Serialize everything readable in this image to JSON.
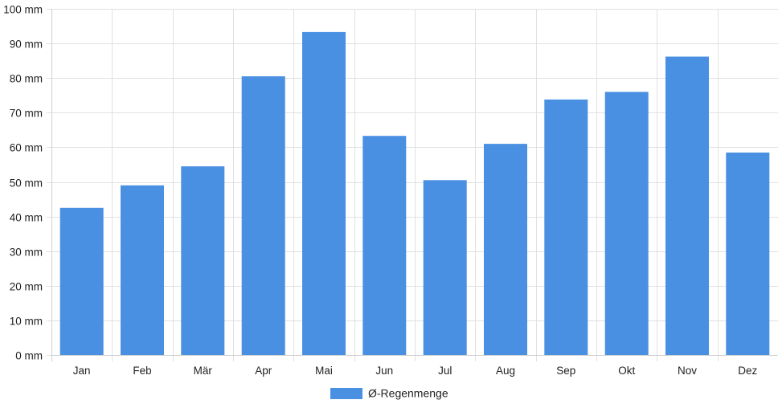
{
  "chart_data": {
    "type": "bar",
    "categories": [
      "Jan",
      "Feb",
      "Mär",
      "Apr",
      "Mai",
      "Jun",
      "Jul",
      "Aug",
      "Sep",
      "Okt",
      "Nov",
      "Dez"
    ],
    "series": [
      {
        "name": "Ø-Regenmenge",
        "values": [
          42.5,
          49,
          54.5,
          80.5,
          93.3,
          63.3,
          50.5,
          61,
          73.8,
          76,
          86.2,
          58.5
        ],
        "color": "#4a90e2"
      }
    ],
    "ylim": [
      0,
      100
    ],
    "yticks": [
      0,
      10,
      20,
      30,
      40,
      50,
      60,
      70,
      80,
      90,
      100
    ],
    "yunit": "mm",
    "ytick_labels": [
      "0 mm",
      "10 mm",
      "20 mm",
      "30 mm",
      "40 mm",
      "50 mm",
      "60 mm",
      "70 mm",
      "80 mm",
      "90 mm",
      "100 mm"
    ],
    "grid": true,
    "legend_position": "bottom-center"
  }
}
